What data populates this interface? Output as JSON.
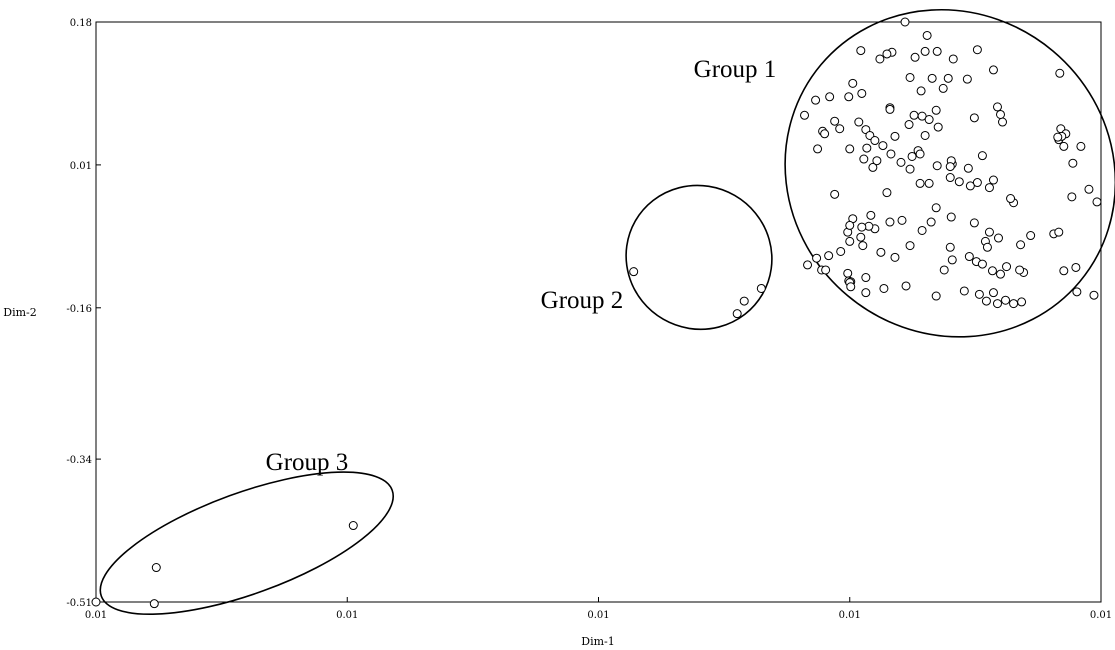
{
  "chart_data": {
    "type": "scatter",
    "title": "",
    "xlabel": "Dim-1",
    "ylabel": "Dim-2",
    "xlim": [
      0,
      1
    ],
    "ylim": [
      -0.51,
      0.18
    ],
    "x_ticks": [
      {
        "value": 0.0,
        "label": "0.01"
      },
      {
        "value": 0.25,
        "label": "0.01"
      },
      {
        "value": 0.5,
        "label": "0.01"
      },
      {
        "value": 0.75,
        "label": "0.01"
      },
      {
        "value": 1.0,
        "label": "0.01"
      }
    ],
    "y_ticks": [
      {
        "value": 0.18,
        "label": "0.18"
      },
      {
        "value": 0.01,
        "label": "0.01"
      },
      {
        "value": -0.16,
        "label": "-0.16"
      },
      {
        "value": -0.34,
        "label": "-0.34"
      },
      {
        "value": -0.51,
        "label": "-0.51"
      }
    ],
    "grid": false,
    "legend": "none",
    "groups": [
      {
        "label": "Group 1",
        "center": [
          0.85,
          0.0
        ],
        "radius": [
          0.168,
          0.19
        ],
        "rotation": 40
      },
      {
        "label": "Group 2",
        "center": [
          0.6,
          -0.1
        ],
        "radius": [
          0.073,
          0.085
        ],
        "rotation": 30
      },
      {
        "label": "Group 3",
        "center": [
          0.15,
          -0.44
        ],
        "radius": [
          0.154,
          0.06
        ],
        "rotation": -20
      }
    ],
    "points": [
      [
        0.805,
        0.18
      ],
      [
        0.827,
        0.164
      ],
      [
        0.761,
        0.146
      ],
      [
        0.792,
        0.144
      ],
      [
        0.825,
        0.145
      ],
      [
        0.837,
        0.145
      ],
      [
        0.877,
        0.147
      ],
      [
        0.815,
        0.138
      ],
      [
        0.853,
        0.136
      ],
      [
        0.832,
        0.113
      ],
      [
        0.848,
        0.113
      ],
      [
        0.867,
        0.112
      ],
      [
        0.893,
        0.123
      ],
      [
        0.81,
        0.114
      ],
      [
        0.787,
        0.142
      ],
      [
        0.78,
        0.136
      ],
      [
        0.959,
        0.119
      ],
      [
        0.821,
        0.098
      ],
      [
        0.843,
        0.101
      ],
      [
        0.753,
        0.107
      ],
      [
        0.762,
        0.095
      ],
      [
        0.73,
        0.091
      ],
      [
        0.749,
        0.091
      ],
      [
        0.716,
        0.087
      ],
      [
        0.79,
        0.078
      ],
      [
        0.79,
        0.076
      ],
      [
        0.836,
        0.075
      ],
      [
        0.874,
        0.066
      ],
      [
        0.897,
        0.079
      ],
      [
        0.814,
        0.069
      ],
      [
        0.759,
        0.061
      ],
      [
        0.766,
        0.052
      ],
      [
        0.822,
        0.068
      ],
      [
        0.829,
        0.064
      ],
      [
        0.902,
        0.061
      ],
      [
        0.838,
        0.055
      ],
      [
        0.735,
        0.062
      ],
      [
        0.77,
        0.045
      ],
      [
        0.775,
        0.039
      ],
      [
        0.825,
        0.045
      ],
      [
        0.705,
        0.069
      ],
      [
        0.723,
        0.05
      ],
      [
        0.74,
        0.053
      ],
      [
        0.725,
        0.047
      ],
      [
        0.96,
        0.053
      ],
      [
        0.958,
        0.04
      ],
      [
        0.795,
        0.044
      ],
      [
        0.809,
        0.058
      ],
      [
        0.9,
        0.07
      ],
      [
        0.965,
        0.047
      ],
      [
        0.75,
        0.029
      ],
      [
        0.783,
        0.033
      ],
      [
        0.791,
        0.023
      ],
      [
        0.812,
        0.02
      ],
      [
        0.98,
        0.032
      ],
      [
        0.81,
        0.005
      ],
      [
        0.961,
        0.044
      ],
      [
        0.764,
        0.017
      ],
      [
        0.852,
        0.011
      ],
      [
        0.773,
        0.007
      ],
      [
        0.957,
        0.043
      ],
      [
        0.837,
        0.009
      ],
      [
        0.972,
        0.012
      ],
      [
        0.818,
        0.027
      ],
      [
        0.767,
        0.03
      ],
      [
        0.718,
        0.029
      ],
      [
        0.82,
        0.023
      ],
      [
        0.777,
        0.015
      ],
      [
        0.801,
        0.013
      ],
      [
        0.851,
        0.015
      ],
      [
        0.882,
        0.021
      ],
      [
        0.85,
        0.008
      ],
      [
        0.963,
        0.032
      ],
      [
        0.868,
        0.006
      ],
      [
        0.85,
        -0.005
      ],
      [
        0.859,
        -0.01
      ],
      [
        0.893,
        -0.008
      ],
      [
        0.877,
        -0.011
      ],
      [
        0.787,
        -0.023
      ],
      [
        0.82,
        -0.012
      ],
      [
        0.735,
        -0.025
      ],
      [
        0.829,
        -0.012
      ],
      [
        0.87,
        -0.015
      ],
      [
        0.889,
        -0.017
      ],
      [
        0.913,
        -0.035
      ],
      [
        0.91,
        -0.03
      ],
      [
        0.971,
        -0.028
      ],
      [
        0.988,
        -0.019
      ],
      [
        0.996,
        -0.034
      ],
      [
        0.748,
        -0.07
      ],
      [
        0.75,
        -0.081
      ],
      [
        0.771,
        -0.05
      ],
      [
        0.775,
        -0.066
      ],
      [
        0.802,
        -0.056
      ],
      [
        0.836,
        -0.041
      ],
      [
        0.831,
        -0.058
      ],
      [
        0.822,
        -0.068
      ],
      [
        0.79,
        -0.058
      ],
      [
        0.851,
        -0.052
      ],
      [
        0.874,
        -0.059
      ],
      [
        0.889,
        -0.07
      ],
      [
        0.898,
        -0.077
      ],
      [
        0.885,
        -0.081
      ],
      [
        0.81,
        -0.086
      ],
      [
        0.753,
        -0.054
      ],
      [
        0.769,
        -0.063
      ],
      [
        0.75,
        -0.062
      ],
      [
        0.762,
        -0.064
      ],
      [
        0.761,
        -0.076
      ],
      [
        0.781,
        -0.094
      ],
      [
        0.795,
        -0.1
      ],
      [
        0.85,
        -0.088
      ],
      [
        0.869,
        -0.099
      ],
      [
        0.887,
        -0.088
      ],
      [
        0.92,
        -0.085
      ],
      [
        0.93,
        -0.074
      ],
      [
        0.953,
        -0.072
      ],
      [
        0.958,
        -0.07
      ],
      [
        0.763,
        -0.086
      ],
      [
        0.741,
        -0.093
      ],
      [
        0.708,
        -0.109
      ],
      [
        0.717,
        -0.101
      ],
      [
        0.729,
        -0.098
      ],
      [
        0.722,
        -0.115
      ],
      [
        0.844,
        -0.115
      ],
      [
        0.852,
        -0.103
      ],
      [
        0.892,
        -0.116
      ],
      [
        0.876,
        -0.105
      ],
      [
        0.882,
        -0.108
      ],
      [
        0.906,
        -0.111
      ],
      [
        0.726,
        -0.115
      ],
      [
        0.748,
        -0.119
      ],
      [
        0.766,
        -0.124
      ],
      [
        0.749,
        -0.128
      ],
      [
        0.751,
        -0.129
      ],
      [
        0.75,
        -0.13
      ],
      [
        0.963,
        -0.116
      ],
      [
        0.975,
        -0.112
      ],
      [
        0.9,
        -0.12
      ],
      [
        0.923,
        -0.118
      ],
      [
        0.919,
        -0.115
      ],
      [
        0.751,
        -0.135
      ],
      [
        0.766,
        -0.142
      ],
      [
        0.784,
        -0.137
      ],
      [
        0.806,
        -0.134
      ],
      [
        0.836,
        -0.146
      ],
      [
        0.864,
        -0.14
      ],
      [
        0.879,
        -0.144
      ],
      [
        0.893,
        -0.142
      ],
      [
        0.886,
        -0.152
      ],
      [
        0.897,
        -0.155
      ],
      [
        0.905,
        -0.151
      ],
      [
        0.913,
        -0.155
      ],
      [
        0.921,
        -0.153
      ],
      [
        0.976,
        -0.141
      ],
      [
        0.993,
        -0.145
      ],
      [
        0.535,
        -0.117
      ],
      [
        0.662,
        -0.137
      ],
      [
        0.645,
        -0.152
      ],
      [
        0.638,
        -0.167
      ],
      [
        0.0,
        -0.51
      ],
      [
        0.06,
        -0.469
      ],
      [
        0.058,
        -0.512
      ],
      [
        0.256,
        -0.419
      ]
    ]
  }
}
